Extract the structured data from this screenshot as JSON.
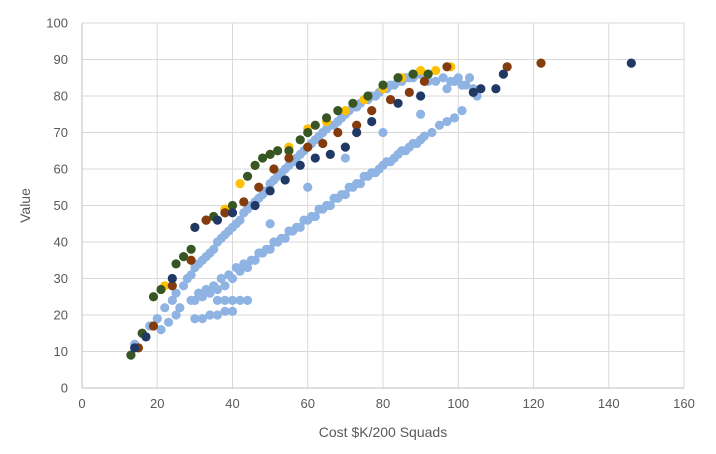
{
  "chart_data": {
    "type": "scatter",
    "title": "",
    "xlabel": "Cost $K/200 Squads",
    "ylabel": "Value",
    "xlim": [
      0,
      160
    ],
    "ylim": [
      0,
      100
    ],
    "x_ticks": [
      0,
      20,
      40,
      60,
      80,
      100,
      120,
      140,
      160
    ],
    "y_ticks": [
      0,
      10,
      20,
      30,
      40,
      50,
      60,
      70,
      80,
      90,
      100
    ],
    "grid": true,
    "legend": "none",
    "colors": {
      "light_blue": "#8fb4e3",
      "gold": "#ffc000",
      "green": "#375623",
      "brown": "#843c0c",
      "navy": "#1f3864",
      "grid": "#d9d9d9",
      "axis": "#bfbfbf"
    },
    "series": [
      {
        "color": "light_blue",
        "x": [
          14,
          16,
          18,
          20,
          22,
          24,
          25,
          27,
          28,
          29,
          30,
          31,
          32,
          33,
          34,
          35,
          36,
          37,
          38,
          39,
          40,
          41,
          42,
          43,
          44,
          45,
          46,
          47,
          48,
          49,
          50,
          51,
          52,
          53,
          54,
          55,
          56,
          57,
          58,
          59,
          60,
          61,
          62,
          63,
          64,
          65,
          66,
          67,
          68,
          69,
          70,
          71,
          72,
          73,
          74,
          75,
          76,
          77,
          78,
          79,
          80,
          81,
          82,
          83,
          84,
          85,
          86,
          87,
          88,
          89,
          90,
          92,
          94,
          96,
          98,
          100,
          102,
          104,
          21,
          23,
          25,
          26,
          29,
          31,
          33,
          35,
          37,
          39,
          41,
          43,
          45,
          47,
          49,
          51,
          53,
          55,
          57,
          59,
          61,
          63,
          65,
          67,
          69,
          71,
          73,
          75,
          77,
          79,
          81,
          83,
          85,
          87,
          89,
          91,
          93,
          95,
          97,
          99,
          101,
          40,
          42,
          44,
          46,
          48,
          50,
          52,
          54,
          56,
          58,
          60,
          62,
          64,
          66,
          68,
          70,
          72,
          74,
          76,
          78,
          80,
          82,
          84,
          86,
          88,
          90,
          30,
          32,
          34,
          36,
          38,
          50,
          60,
          70,
          80,
          90,
          103,
          105,
          97,
          99,
          101,
          36,
          38,
          40,
          42,
          44,
          30,
          32,
          34,
          36,
          38,
          40
        ],
        "y": [
          12,
          15,
          17,
          19,
          22,
          24,
          26,
          28,
          30,
          31,
          33,
          34,
          35,
          36,
          37,
          38,
          40,
          41,
          42,
          43,
          44,
          45,
          46,
          48,
          49,
          50,
          51,
          52,
          53,
          54,
          56,
          57,
          58,
          59,
          60,
          61,
          62,
          63,
          64,
          65,
          66,
          67,
          68,
          69,
          70,
          71,
          72,
          72,
          73,
          74,
          75,
          76,
          77,
          77,
          78,
          79,
          79,
          80,
          80,
          81,
          82,
          82,
          83,
          83,
          84,
          84,
          85,
          85,
          85,
          86,
          86,
          84,
          84,
          85,
          84,
          85,
          83,
          82,
          16,
          18,
          20,
          22,
          24,
          26,
          27,
          28,
          30,
          31,
          33,
          34,
          35,
          37,
          38,
          40,
          41,
          43,
          44,
          46,
          47,
          49,
          50,
          52,
          53,
          55,
          56,
          58,
          59,
          60,
          62,
          63,
          65,
          66,
          67,
          69,
          70,
          72,
          73,
          74,
          76,
          30,
          32,
          33,
          35,
          37,
          38,
          40,
          41,
          43,
          44,
          46,
          47,
          49,
          50,
          52,
          53,
          55,
          56,
          58,
          59,
          61,
          62,
          64,
          65,
          67,
          68,
          24,
          25,
          26,
          27,
          28,
          45,
          55,
          63,
          70,
          75,
          85,
          80,
          82,
          84,
          83,
          24,
          24,
          24,
          24,
          24,
          19,
          19,
          20,
          20,
          21,
          21
        ]
      },
      {
        "color": "gold",
        "x": [
          22,
          30,
          35,
          38,
          42,
          46,
          50,
          55,
          60,
          65,
          70,
          75,
          80,
          85,
          90,
          94,
          98
        ],
        "y": [
          28,
          44,
          47,
          49,
          56,
          61,
          64,
          66,
          71,
          73,
          76,
          79,
          82,
          85,
          87,
          87,
          88
        ]
      },
      {
        "color": "green",
        "x": [
          13,
          16,
          19,
          21,
          25,
          27,
          29,
          33,
          35,
          38,
          40,
          44,
          46,
          48,
          50,
          52,
          55,
          58,
          60,
          62,
          65,
          68,
          72,
          76,
          80,
          84,
          88,
          92
        ],
        "y": [
          9,
          15,
          25,
          27,
          34,
          36,
          38,
          46,
          47,
          48,
          50,
          58,
          61,
          63,
          64,
          65,
          65,
          68,
          70,
          72,
          74,
          76,
          78,
          80,
          83,
          85,
          86,
          86
        ]
      },
      {
        "color": "brown",
        "x": [
          15,
          19,
          24,
          29,
          33,
          38,
          43,
          47,
          51,
          55,
          60,
          64,
          68,
          73,
          77,
          82,
          87,
          91,
          97,
          113,
          122
        ],
        "y": [
          11,
          17,
          28,
          35,
          46,
          48,
          51,
          55,
          60,
          63,
          66,
          67,
          70,
          72,
          76,
          79,
          81,
          84,
          88,
          88,
          89
        ]
      },
      {
        "color": "navy",
        "x": [
          14,
          17,
          24,
          30,
          36,
          40,
          46,
          50,
          54,
          58,
          62,
          66,
          70,
          73,
          77,
          84,
          90,
          104,
          106,
          110,
          112,
          146
        ],
        "y": [
          11,
          14,
          30,
          44,
          46,
          48,
          50,
          54,
          57,
          61,
          63,
          64,
          66,
          70,
          73,
          78,
          80,
          81,
          82,
          82,
          86,
          89
        ]
      }
    ]
  }
}
